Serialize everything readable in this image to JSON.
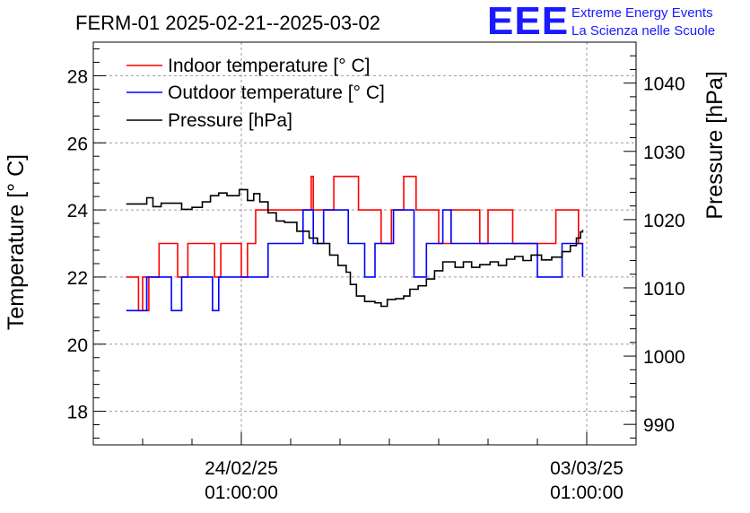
{
  "chart_data": {
    "type": "line",
    "title": "FERM-01 2025-02-21--2025-03-02",
    "ylabel": "Temperature [° C]",
    "y2label": "Pressure [hPa]",
    "ylim": [
      17.0,
      29.0
    ],
    "y2lim": [
      987.0,
      1046.0
    ],
    "xlim": [
      "2025-02-21T01:00:00",
      "2025-03-04T01:00:00"
    ],
    "xticks": [
      {
        "t": "2025-02-24T01:00:00",
        "date": "24/02/25",
        "time": "01:00:00"
      },
      {
        "t": "2025-03-03T01:00:00",
        "date": "03/03/25",
        "time": "01:00:00"
      }
    ],
    "yticks": [
      18,
      20,
      22,
      24,
      26,
      28
    ],
    "y2ticks": [
      990,
      1000,
      1010,
      1020,
      1030,
      1040
    ],
    "grid": true,
    "legend_position": "top-left",
    "series": [
      {
        "name": "Indoor temperature [° C]",
        "color": "#ff0000",
        "axis": "left",
        "points": [
          [
            "2025-02-21T17:00",
            22
          ],
          [
            "2025-02-21T22:00",
            22
          ],
          [
            "2025-02-21T23:00",
            21
          ],
          [
            "2025-02-22T01:00",
            22
          ],
          [
            "2025-02-22T03:00",
            21
          ],
          [
            "2025-02-22T04:00",
            22
          ],
          [
            "2025-02-22T08:00",
            22
          ],
          [
            "2025-02-22T09:00",
            23
          ],
          [
            "2025-02-22T17:00",
            23
          ],
          [
            "2025-02-22T18:00",
            22
          ],
          [
            "2025-02-22T22:00",
            22
          ],
          [
            "2025-02-22T23:00",
            23
          ],
          [
            "2025-02-23T11:00",
            23
          ],
          [
            "2025-02-23T12:00",
            22
          ],
          [
            "2025-02-23T14:00",
            22
          ],
          [
            "2025-02-23T15:00",
            23
          ],
          [
            "2025-02-24T00:00",
            23
          ],
          [
            "2025-02-24T01:00",
            22
          ],
          [
            "2025-02-24T03:00",
            22
          ],
          [
            "2025-02-24T04:00",
            23
          ],
          [
            "2025-02-24T07:00",
            23
          ],
          [
            "2025-02-24T08:00",
            24
          ],
          [
            "2025-02-25T10:00",
            24
          ],
          [
            "2025-02-25T11:00",
            25
          ],
          [
            "2025-02-25T12:00",
            24
          ],
          [
            "2025-02-25T21:00",
            24
          ],
          [
            "2025-02-25T22:00",
            25
          ],
          [
            "2025-02-26T09:00",
            25
          ],
          [
            "2025-02-26T10:00",
            24
          ],
          [
            "2025-02-26T20:00",
            24
          ],
          [
            "2025-02-26T21:00",
            23
          ],
          [
            "2025-02-27T01:00",
            23
          ],
          [
            "2025-02-27T02:00",
            24
          ],
          [
            "2025-02-27T07:00",
            24
          ],
          [
            "2025-02-27T08:00",
            25
          ],
          [
            "2025-02-27T13:00",
            25
          ],
          [
            "2025-02-27T14:00",
            24
          ],
          [
            "2025-02-28T00:00",
            24
          ],
          [
            "2025-02-28T01:00",
            23
          ],
          [
            "2025-02-28T06:00",
            23
          ],
          [
            "2025-02-28T07:00",
            24
          ],
          [
            "2025-02-28T20:00",
            24
          ],
          [
            "2025-02-28T21:00",
            23
          ],
          [
            "2025-03-01T00:00",
            23
          ],
          [
            "2025-03-01T01:00",
            24
          ],
          [
            "2025-03-01T12:00",
            24
          ],
          [
            "2025-03-01T13:00",
            23
          ],
          [
            "2025-03-02T09:00",
            23
          ],
          [
            "2025-03-02T10:00",
            24
          ],
          [
            "2025-03-02T20:00",
            24
          ],
          [
            "2025-03-02T21:00",
            23
          ],
          [
            "2025-03-02T23:00",
            23
          ]
        ]
      },
      {
        "name": "Outdoor temperature [° C]",
        "color": "#0000ff",
        "axis": "left",
        "points": [
          [
            "2025-02-21T17:00",
            21
          ],
          [
            "2025-02-22T02:00",
            21
          ],
          [
            "2025-02-22T03:00",
            22
          ],
          [
            "2025-02-22T14:00",
            22
          ],
          [
            "2025-02-22T15:00",
            21
          ],
          [
            "2025-02-22T19:00",
            21
          ],
          [
            "2025-02-22T20:00",
            22
          ],
          [
            "2025-02-23T10:00",
            22
          ],
          [
            "2025-02-23T11:00",
            21
          ],
          [
            "2025-02-23T13:00",
            21
          ],
          [
            "2025-02-23T14:00",
            22
          ],
          [
            "2025-02-24T13:00",
            22
          ],
          [
            "2025-02-24T14:00",
            23
          ],
          [
            "2025-02-25T06:00",
            23
          ],
          [
            "2025-02-25T07:00",
            24
          ],
          [
            "2025-02-25T11:00",
            24
          ],
          [
            "2025-02-25T12:00",
            23
          ],
          [
            "2025-02-25T16:00",
            23
          ],
          [
            "2025-02-25T17:00",
            24
          ],
          [
            "2025-02-26T04:00",
            24
          ],
          [
            "2025-02-26T05:00",
            23
          ],
          [
            "2025-02-26T12:00",
            23
          ],
          [
            "2025-02-26T13:00",
            22
          ],
          [
            "2025-02-26T17:00",
            22
          ],
          [
            "2025-02-26T18:00",
            23
          ],
          [
            "2025-02-27T02:00",
            23
          ],
          [
            "2025-02-27T03:00",
            24
          ],
          [
            "2025-02-27T12:00",
            24
          ],
          [
            "2025-02-27T13:00",
            22
          ],
          [
            "2025-02-27T18:00",
            22
          ],
          [
            "2025-02-27T19:00",
            23
          ],
          [
            "2025-02-28T02:00",
            23
          ],
          [
            "2025-02-28T03:00",
            24
          ],
          [
            "2025-02-28T06:00",
            24
          ],
          [
            "2025-02-28T07:00",
            23
          ],
          [
            "2025-03-02T00:00",
            23
          ],
          [
            "2025-03-02T01:00",
            22
          ],
          [
            "2025-03-02T12:00",
            22
          ],
          [
            "2025-03-02T13:00",
            23
          ],
          [
            "2025-03-02T22:00",
            23
          ],
          [
            "2025-03-02T23:00",
            22
          ]
        ]
      },
      {
        "name": "Pressure [hPa]",
        "color": "#000000",
        "axis": "right",
        "points": [
          [
            "2025-02-21T17:00",
            1022.3
          ],
          [
            "2025-02-22T00:00",
            1022.3
          ],
          [
            "2025-02-22T03:00",
            1023.2
          ],
          [
            "2025-02-22T06:00",
            1021.9
          ],
          [
            "2025-02-22T10:00",
            1022.4
          ],
          [
            "2025-02-22T16:00",
            1022.4
          ],
          [
            "2025-02-22T20:00",
            1021.5
          ],
          [
            "2025-02-23T01:00",
            1021.8
          ],
          [
            "2025-02-23T06:00",
            1022.6
          ],
          [
            "2025-02-23T10:00",
            1023.5
          ],
          [
            "2025-02-23T14:00",
            1023.9
          ],
          [
            "2025-02-23T18:00",
            1023.5
          ],
          [
            "2025-02-24T00:00",
            1024.4
          ],
          [
            "2025-02-24T04:00",
            1022.8
          ],
          [
            "2025-02-24T07:00",
            1023.8
          ],
          [
            "2025-02-24T10:00",
            1022.6
          ],
          [
            "2025-02-24T14:00",
            1021.0
          ],
          [
            "2025-02-24T18:00",
            1019.8
          ],
          [
            "2025-02-24T22:00",
            1019.6
          ],
          [
            "2025-02-25T04:00",
            1018.3
          ],
          [
            "2025-02-25T10:00",
            1017.3
          ],
          [
            "2025-02-25T14:00",
            1016.5
          ],
          [
            "2025-02-25T20:00",
            1014.8
          ],
          [
            "2025-02-26T00:00",
            1013.3
          ],
          [
            "2025-02-26T04:00",
            1012.3
          ],
          [
            "2025-02-26T06:00",
            1010.5
          ],
          [
            "2025-02-26T09:00",
            1008.8
          ],
          [
            "2025-02-26T13:00",
            1008.0
          ],
          [
            "2025-02-26T18:00",
            1007.8
          ],
          [
            "2025-02-26T21:00",
            1007.3
          ],
          [
            "2025-02-27T00:00",
            1008.3
          ],
          [
            "2025-02-27T04:00",
            1008.4
          ],
          [
            "2025-02-27T08:00",
            1008.8
          ],
          [
            "2025-02-27T11:00",
            1009.8
          ],
          [
            "2025-02-27T15:00",
            1010.3
          ],
          [
            "2025-02-27T19:00",
            1011.3
          ],
          [
            "2025-02-27T23:00",
            1012.5
          ],
          [
            "2025-02-28T03:00",
            1013.8
          ],
          [
            "2025-02-28T06:00",
            1013.8
          ],
          [
            "2025-02-28T09:00",
            1013.0
          ],
          [
            "2025-02-28T13:00",
            1013.8
          ],
          [
            "2025-02-28T17:00",
            1013.0
          ],
          [
            "2025-02-28T21:00",
            1013.4
          ],
          [
            "2025-03-01T02:00",
            1013.8
          ],
          [
            "2025-03-01T06:00",
            1013.3
          ],
          [
            "2025-03-01T10:00",
            1014.2
          ],
          [
            "2025-03-01T14:00",
            1014.6
          ],
          [
            "2025-03-01T18:00",
            1014.0
          ],
          [
            "2025-03-01T22:00",
            1014.8
          ],
          [
            "2025-03-02T03:00",
            1014.1
          ],
          [
            "2025-03-02T08:00",
            1014.5
          ],
          [
            "2025-03-02T13:00",
            1015.3
          ],
          [
            "2025-03-02T17:00",
            1016.2
          ],
          [
            "2025-03-02T20:00",
            1017.3
          ],
          [
            "2025-03-02T22:00",
            1018.2
          ],
          [
            "2025-03-02T23:00",
            1018.5
          ]
        ]
      }
    ]
  },
  "logo": {
    "mark": "EEE",
    "line1": "Extreme Energy Events",
    "line2": "La Scienza nelle Scuole"
  }
}
